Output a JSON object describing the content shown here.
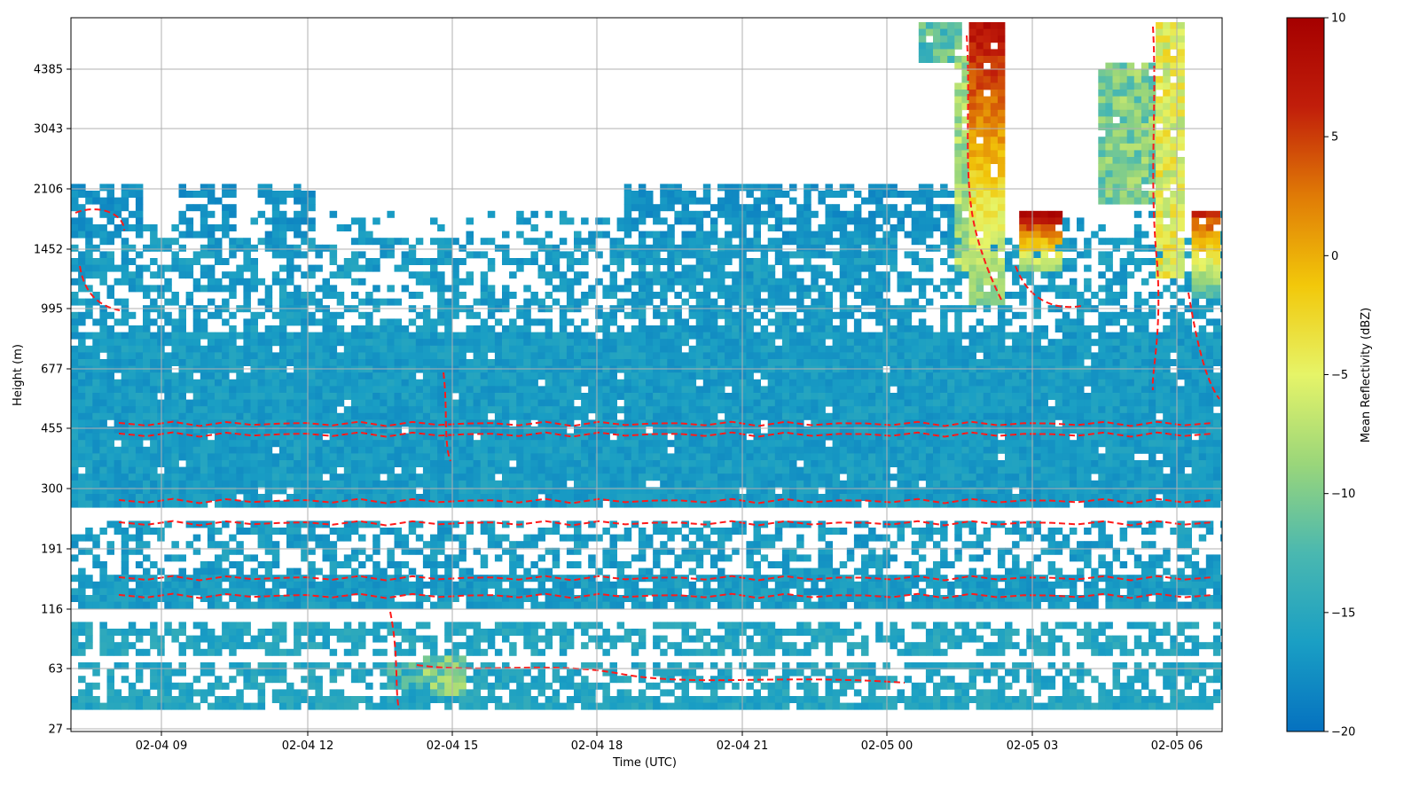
{
  "chart_data": {
    "type": "heatmap",
    "title": "",
    "xlabel": "Time (UTC)",
    "ylabel": "Height (m)",
    "x_ticks": [
      "02-04 09",
      "02-04 12",
      "02-04 15",
      "02-04 18",
      "02-04 21",
      "02-05 00",
      "02-05 03",
      "02-05 06"
    ],
    "y_ticks": [
      "27",
      "63",
      "116",
      "191",
      "300",
      "455",
      "677",
      "995",
      "1452",
      "2106",
      "3043",
      "4385"
    ],
    "xlim_hours": [
      6.2,
      30.0
    ],
    "grid": true,
    "colorbar": {
      "label": "Mean Reflectivity (dBZ)",
      "range": [
        -20,
        10
      ],
      "ticks": [
        "10",
        "5",
        "0",
        "−5",
        "−10",
        "−15",
        "−20"
      ],
      "colormap": [
        "#0571c0",
        "#1a9fc4",
        "#4ab8b0",
        "#9ad67a",
        "#e6f468",
        "#f2c80a",
        "#e07b06",
        "#c11e0a",
        "#a50000"
      ]
    },
    "overlay": {
      "type": "contour",
      "style": "dashed",
      "color": "#ff1a1a"
    }
  }
}
